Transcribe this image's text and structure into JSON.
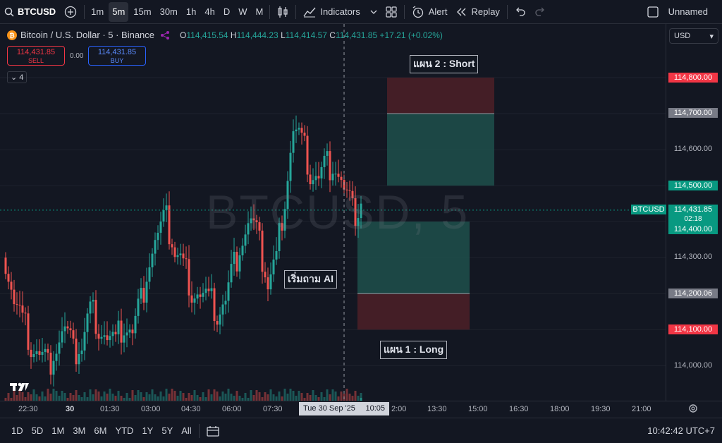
{
  "toolbar": {
    "symbol": "BTCUSD",
    "timeframes": [
      "1m",
      "5m",
      "15m",
      "30m",
      "1h",
      "4h",
      "D",
      "W",
      "M"
    ],
    "active_timeframe": "5m",
    "indicators_label": "Indicators",
    "alert_label": "Alert",
    "replay_label": "Replay",
    "layout_name": "Unnamed"
  },
  "legend": {
    "title": "Bitcoin / U.S. Dollar · 5 · Binance",
    "o_key": "O",
    "o_val": "114,415.54",
    "h_key": "H",
    "h_val": "114,444.23",
    "l_key": "L",
    "l_val": "114,414.57",
    "c_key": "C",
    "c_val": "114,431.85",
    "change": "+17.21 (+0.02%)"
  },
  "trade": {
    "sell_price": "114,431.85",
    "sell_label": "SELL",
    "spread": "0.00",
    "buy_price": "114,431.85",
    "buy_label": "BUY",
    "collapse_count": "4"
  },
  "currency": "USD",
  "price_labels": {
    "p1": "114,800.00",
    "p2": "114,700.00",
    "p3": "114,600.00",
    "p4": "114,500.00",
    "last_symbol": "BTCUSD",
    "last_price": "114,431.85",
    "countdown": "02:18",
    "p5": "114,400.00",
    "p6": "114,300.00",
    "p7": "114,200.06",
    "p8": "114,100.00",
    "p9": "114,000.00"
  },
  "annotations": {
    "plan2": "แผน 2 : Short",
    "plan1": "แผน 1 : Long",
    "ask_ai": "เริ่มถาม AI"
  },
  "watermark": "BTCUSD, 5",
  "time_axis": {
    "t1": "22:30",
    "t2": "30",
    "t3": "01:30",
    "t4": "03:00",
    "t5": "04:30",
    "t6": "06:00",
    "t7": "07:30",
    "cursor": "Tue 30 Sep '25",
    "cursor_time": "10:05",
    "t8": "2:00",
    "t9": "13:30",
    "t10": "15:00",
    "t11": "16:30",
    "t12": "18:00",
    "t13": "19:30",
    "t14": "21:00"
  },
  "bottom": {
    "ranges": [
      "1D",
      "5D",
      "1M",
      "3M",
      "6M",
      "YTD",
      "1Y",
      "5Y",
      "All"
    ],
    "clock": "10:42:42 UTC+7"
  },
  "colors": {
    "bull": "#26a69a",
    "bear": "#ef5350",
    "profit_zone": "#1e4d49",
    "loss_zone": "#4a1f27"
  }
}
